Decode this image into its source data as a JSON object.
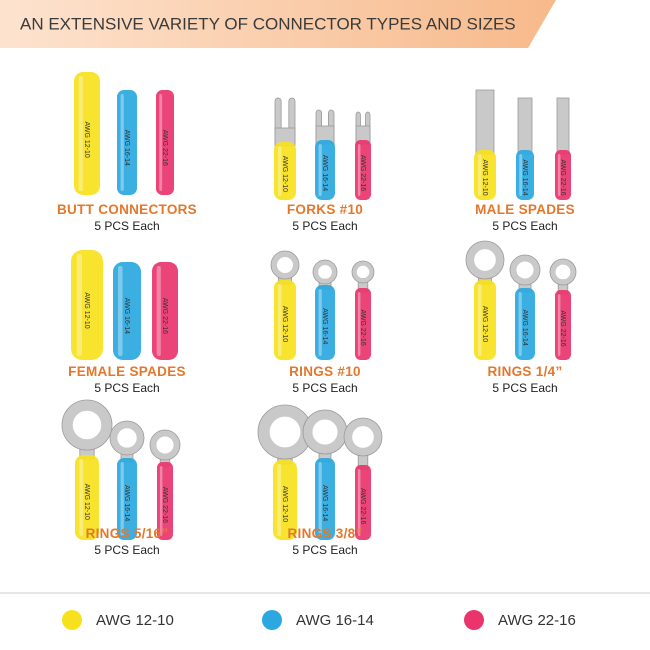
{
  "header": {
    "title": "AN EXTENSIVE VARIETY OF CONNECTOR TYPES AND SIZES"
  },
  "items": [
    {
      "name": "BUTT CONNECTORS",
      "quantity": "5 PCS Each"
    },
    {
      "name": "FORKS #10",
      "quantity": "5 PCS Each"
    },
    {
      "name": "MALE SPADES",
      "quantity": "5 PCS Each"
    },
    {
      "name": "FEMALE SPADES",
      "quantity": "5 PCS Each"
    },
    {
      "name": "RINGS #10",
      "quantity": "5 PCS Each"
    },
    {
      "name": "RINGS 1/4”",
      "quantity": "5 PCS Each"
    },
    {
      "name": "RINGS 5/16”",
      "quantity": "5 PCS Each"
    },
    {
      "name": "RINGS 3/8”",
      "quantity": "5 PCS Each"
    }
  ],
  "legend": [
    {
      "label": "AWG 12-10",
      "color": "#f7e11d"
    },
    {
      "label": "AWG 16-14",
      "color": "#2ba8e0"
    },
    {
      "label": "AWG 22-16",
      "color": "#e9346c"
    }
  ]
}
